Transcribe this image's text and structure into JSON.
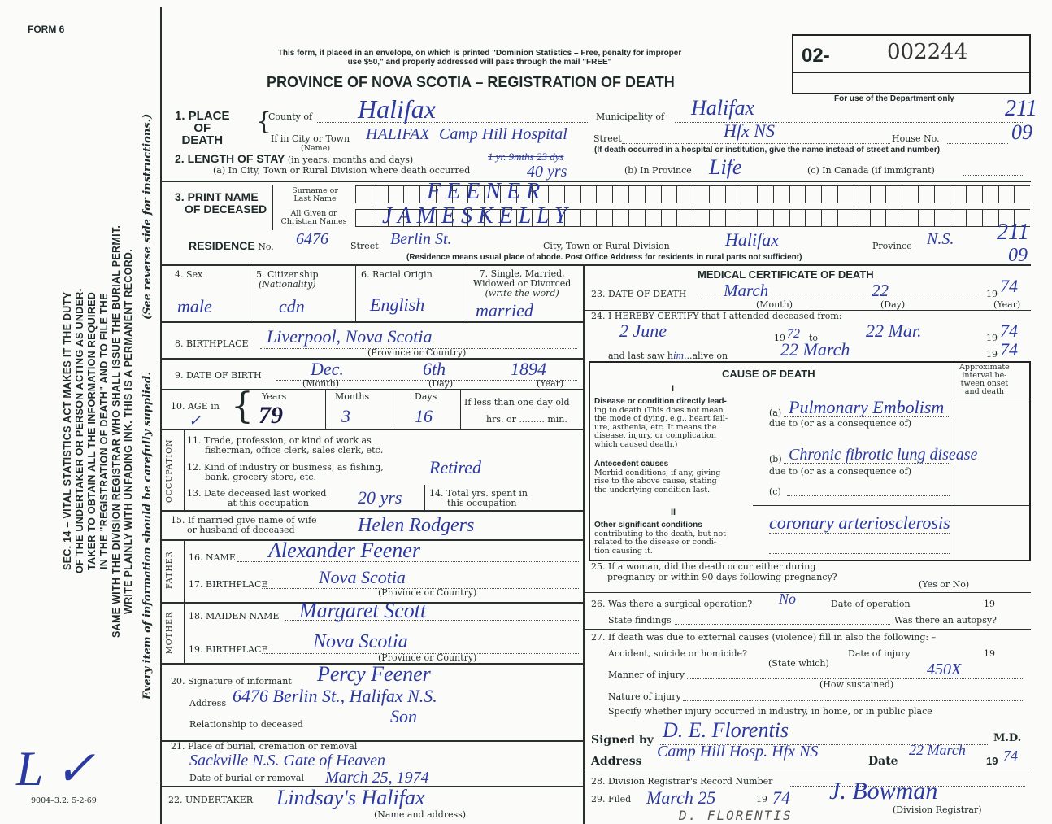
{
  "form_label": "FORM 6",
  "postal_notice": [
    "This form, if placed in an envelope, on which is printed \"Dominion Statistics – Free, penalty for improper",
    "use $50,\" and properly addressed will pass through the mail \"FREE\""
  ],
  "title": "PROVINCE OF NOVA SCOTIA – REGISTRATION OF DEATH",
  "registration": {
    "prefix": "02-",
    "number": "002244",
    "dept_note": "For use of the Department only",
    "codes": [
      "211",
      "09",
      "211",
      "09"
    ]
  },
  "sidebar": {
    "lines": [
      "SEC. 14 – VITAL STATISTICS ACT MAKES IT THE DUTY",
      "OF THE UNDERTAKER OR PERSON ACTING AS UNDER-",
      "TAKER TO OBTAIN ALL THE INFORMATION REQUIRED",
      "IN THE \"REGISTRATION OF DEATH\" AND TO FILE THE",
      "SAME WITH THE DIVISION REGISTRAR WHO SHALL ISSUE THE BURIAL PERMIT.",
      "WRITE PLAINLY WITH UNFADING INK. THIS IS A PERMANENT RECORD."
    ],
    "see_reverse": "(See reverse side for instructions.)",
    "every_item": "Every item of information should be carefully supplied.",
    "form_code": "9004–3.2: 5-2-69"
  },
  "place": {
    "label": [
      "1. PLACE",
      "OF",
      "DEATH"
    ],
    "county_label": "County of",
    "county": "Halifax",
    "municipality_label": "Municipality of",
    "municipality": "Halifax",
    "city_label": "If in City or Town",
    "city": "HALIFAX",
    "institution": "Camp Hill Hospital",
    "name_label": "(Name)",
    "street_label": "Street",
    "street": "Hfx NS",
    "house_label": "House No.",
    "note": "(If death occurred in a hospital or institution, give the name instead of street and number)"
  },
  "stay": {
    "label": "2. LENGTH OF STAY",
    "label_sub": "(in years, months and days)",
    "a_label": "(a) In City, Town or Rural Division where death occurred",
    "a_value_struck": "1 yr. 9mths 23 dys",
    "a_value": "40 yrs",
    "b_label": "(b) In Province",
    "b_value": "Life",
    "c_label": "(c) In Canada (if immigrant)"
  },
  "name": {
    "label": [
      "3. PRINT NAME",
      "OF DECEASED"
    ],
    "surname_label": [
      "Surname or",
      "Last Name"
    ],
    "given_label": [
      "All Given or",
      "Christian Names"
    ],
    "surname": "F E E N E R",
    "given": "J A M E S   K E L L Y"
  },
  "residence": {
    "label": "RESIDENCE",
    "no_label": "No.",
    "no": "6476",
    "street_label": "Street",
    "street": "Berlin St.",
    "city_label": "City, Town or Rural Division",
    "city": "Halifax",
    "province_label": "Province",
    "province": "N.S.",
    "note": "(Residence means usual place of abode. Post Office Address for residents in rural parts not sufficient)"
  },
  "personal": {
    "sex_label": "4. Sex",
    "sex": "male",
    "citizenship_label": [
      "5. Citizenship",
      "(Nationality)"
    ],
    "citizenship": "cdn",
    "racial_label": "6. Racial Origin",
    "racial": "English",
    "marital_label": [
      "7. Single, Married,",
      "Widowed or Divorced",
      "(write the word)"
    ],
    "marital": "married",
    "birthplace_label": "8. BIRTHPLACE",
    "birthplace": "Liverpool, Nova Scotia",
    "birthplace_sub": "(Province or Country)",
    "dob_label": "9. DATE OF BIRTH",
    "dob_month": "Dec.",
    "dob_day": "6th",
    "dob_year": "1894",
    "month_label": "(Month)",
    "day_label": "(Day)",
    "year_label": "(Year)",
    "age_label": "10. AGE in",
    "age_check": "✓",
    "years_label": "Years",
    "years": "79",
    "months_label": "Months",
    "months": "3",
    "days_label": "Days",
    "days": "16",
    "less_label": "If less than one day old",
    "hrs_label": "hrs. or",
    "min_label": "min."
  },
  "occupation": {
    "side": "OCCUPATION",
    "q11": [
      "11. Trade, profession, or kind of work as",
      "fisherman, office clerk, sales clerk, etc."
    ],
    "q12": [
      "12. Kind of industry or business, as fishing,",
      "bank, grocery store, etc."
    ],
    "q12_value": "Retired",
    "q13": [
      "13. Date deceased last worked",
      "at this occupation"
    ],
    "q13_value": "20 yrs",
    "q14": [
      "14. Total yrs. spent in",
      "this occupation"
    ]
  },
  "spouse": {
    "label": [
      "15. If married give name of wife",
      "or husband of deceased"
    ],
    "value": "Helen Rodgers"
  },
  "father": {
    "side": "FATHER",
    "name_label": "16. NAME",
    "name": "Alexander Feener",
    "bp_label": "17. BIRTHPLACE",
    "bp": "Nova Scotia",
    "bp_sub": "(Province or Country)"
  },
  "mother": {
    "side": "MOTHER",
    "name_label": "18. MAIDEN NAME",
    "name": "Margaret Scott",
    "bp_label": "19. BIRTHPLACE",
    "bp": "Nova Scotia",
    "bp_sub": "(Province or Country)"
  },
  "informant": {
    "label": "20. Signature of informant",
    "signature": "Percy Feener",
    "address_label": "Address",
    "address": "6476 Berlin St., Halifax N.S.",
    "relationship_label": "Relationship to deceased",
    "relationship": "Son"
  },
  "burial": {
    "label": "21. Place of burial, cremation or removal",
    "place": "Sackville N.S. Gate of Heaven",
    "date_label": "Date of burial or removal",
    "date": "March 25, 1974"
  },
  "undertaker": {
    "label": "22. UNDERTAKER",
    "value": "Lindsay's   Halifax",
    "sub": "(Name and address)"
  },
  "medical": {
    "title": "MEDICAL CERTIFICATE OF DEATH",
    "q23": "23. DATE OF DEATH",
    "death_month": "March",
    "death_day": "22",
    "death_year_prefix": "19",
    "death_year": "74",
    "q24": "24. I HEREBY CERTIFY that I attended deceased from:",
    "from": "2 June",
    "from_year": "72",
    "to_label": "to",
    "to": "22 Mar.",
    "to_year": "74",
    "last_seen_label": "and last saw h",
    "last_seen_suffix": "alive on",
    "last_seen": "22 March",
    "last_year": "74"
  },
  "cause": {
    "title": "CAUSE OF DEATH",
    "interval": [
      "Approximate",
      "interval be-",
      "tween onset",
      "and death"
    ],
    "part1": "I",
    "direct": [
      "Disease or condition directly lead-",
      "ing to death (This does not mean",
      "the mode of dying, e.g., heart fail-",
      "ure, asthenia, etc. It means the",
      "disease, injury, or complication",
      "which caused death.)"
    ],
    "a_label": "(a)",
    "a": "Pulmonary Embolism",
    "due_to": "due to (or as a consequence of)",
    "antecedent": [
      "Antecedent causes",
      "Morbid conditions, if any, giving",
      "rise to the above cause, stating",
      "the underlying condition last."
    ],
    "b_label": "(b)",
    "b": "Chronic fibrotic lung disease",
    "c_label": "(c)",
    "part2": "II",
    "other": [
      "Other significant conditions",
      "contributing to the death, but not",
      "related to the disease or condi-",
      "tion causing it."
    ],
    "other_value": "coronary arteriosclerosis"
  },
  "q25": {
    "label": [
      "25. If a woman, did the death occur either during",
      "pregnancy or within 90 days following pregnancy?"
    ],
    "yes_no": "(Yes or No)"
  },
  "q26": {
    "label": "26. Was there a surgical operation?",
    "value": "No",
    "date_label": "Date of operation",
    "year": "19",
    "findings": "State findings",
    "autopsy": "Was there an autopsy?"
  },
  "q27": {
    "label": "27. If death was due to external causes (violence) fill in also the following: –",
    "accident": "Accident, suicide or homicide?",
    "state_which": "(State which)",
    "injury_date": "Date of injury",
    "year": "19",
    "manner": "Manner of injury",
    "how": "(How sustained)",
    "code": "450X",
    "nature": "Nature of injury",
    "specify": "Specify whether injury occurred in industry, in home, or in public place"
  },
  "signed": {
    "label": "Signed by",
    "signature": "D. E. Florentis",
    "md": "M.D.",
    "address_label": "Address",
    "address": "Camp Hill Hosp.  Hfx NS",
    "date_label": "Date",
    "date": "22 March",
    "year_prefix": "19",
    "year": "74"
  },
  "q28": {
    "label": "28. Division Registrar's Record Number"
  },
  "q29": {
    "label": "29. Filed",
    "filed": "March 25",
    "year_prefix": "19",
    "year": "74",
    "registrar": "J. Bowman",
    "registrar_label": "(Division Registrar)",
    "stamp": "D. FLORENTIS"
  },
  "margin_marks": "L ✓"
}
